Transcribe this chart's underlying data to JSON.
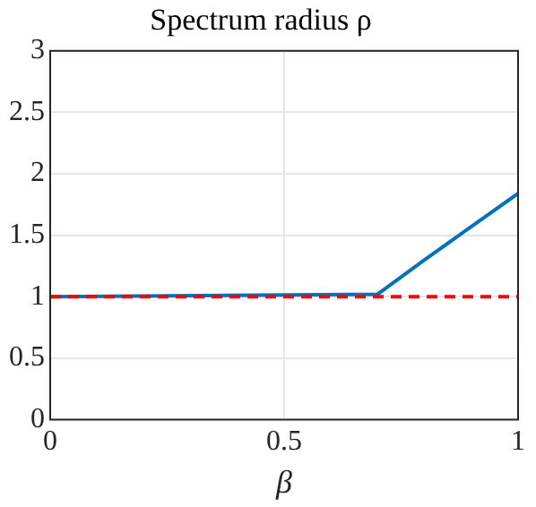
{
  "chart_data": {
    "type": "line",
    "title": "Spectrum radius ρ",
    "xlabel": "β",
    "x": [
      0,
      0.7,
      0.8,
      1
    ],
    "series": [
      {
        "color": "#0072bd",
        "values": [
          1,
          1.02,
          1.3,
          1.84
        ]
      }
    ],
    "xlim": [
      0,
      1
    ],
    "xticks": [
      0,
      0.5,
      1
    ],
    "ylim": [
      0,
      3
    ],
    "yticks": [
      0,
      0.5,
      1,
      1.5,
      2,
      2.5,
      3
    ],
    "ref_lines": [
      {
        "axis": "y",
        "value": 1,
        "color": "#ff0000",
        "line_style": "dashed"
      }
    ],
    "grid": true,
    "legend": false,
    "marker": "none",
    "line_style": "solid"
  }
}
